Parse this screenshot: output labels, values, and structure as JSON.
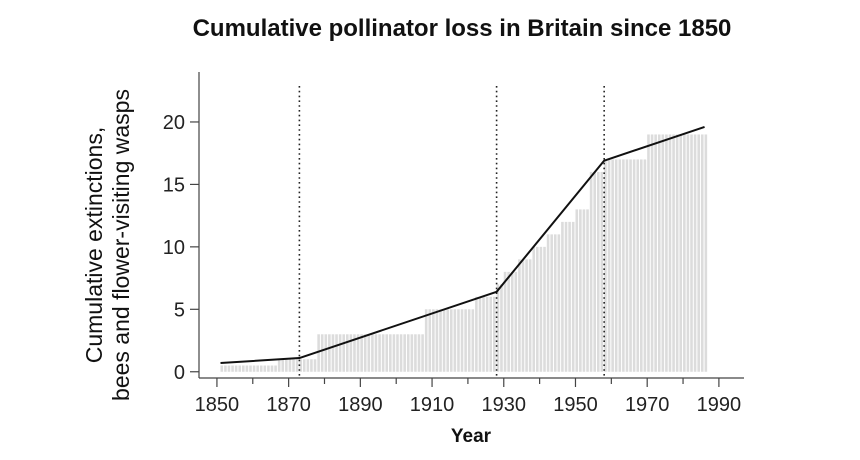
{
  "chart_data": {
    "type": "bar",
    "title": "Cumulative pollinator loss in Britain since 1850",
    "xlabel": "Year",
    "ylabel_line1": "Cumulative extinctions,",
    "ylabel_line2": "bees and flower-visiting wasps",
    "xlim": [
      1845,
      1997
    ],
    "ylim": [
      -0.5,
      24
    ],
    "x_ticks": [
      "1850",
      "1870",
      "1890",
      "1910",
      "1930",
      "1950",
      "1970",
      "1990"
    ],
    "y_ticks": [
      "0",
      "5",
      "10",
      "15",
      "20"
    ],
    "grid": false,
    "legend": "none",
    "bars": {
      "color": "#dcdcdc",
      "steps": [
        {
          "from": 1851,
          "to": 1867,
          "value": 0.5
        },
        {
          "from": 1867,
          "to": 1878,
          "value": 1
        },
        {
          "from": 1878,
          "to": 1908,
          "value": 3
        },
        {
          "from": 1908,
          "to": 1922,
          "value": 5
        },
        {
          "from": 1922,
          "to": 1928,
          "value": 6
        },
        {
          "from": 1928,
          "to": 1930,
          "value": 7
        },
        {
          "from": 1930,
          "to": 1934,
          "value": 8
        },
        {
          "from": 1934,
          "to": 1938,
          "value": 9
        },
        {
          "from": 1938,
          "to": 1942,
          "value": 10
        },
        {
          "from": 1942,
          "to": 1946,
          "value": 11
        },
        {
          "from": 1946,
          "to": 1950,
          "value": 12
        },
        {
          "from": 1950,
          "to": 1954,
          "value": 13
        },
        {
          "from": 1954,
          "to": 1958,
          "value": 16
        },
        {
          "from": 1958,
          "to": 1970,
          "value": 17
        },
        {
          "from": 1970,
          "to": 1987,
          "value": 19
        }
      ]
    },
    "trend_line": {
      "color": "#111111",
      "x": [
        1851,
        1873,
        1928,
        1958,
        1986
      ],
      "y": [
        0.7,
        1.1,
        6.4,
        16.9,
        19.6
      ]
    },
    "breakpoints": {
      "style": "dotted",
      "x": [
        1873,
        1928,
        1958
      ]
    }
  }
}
